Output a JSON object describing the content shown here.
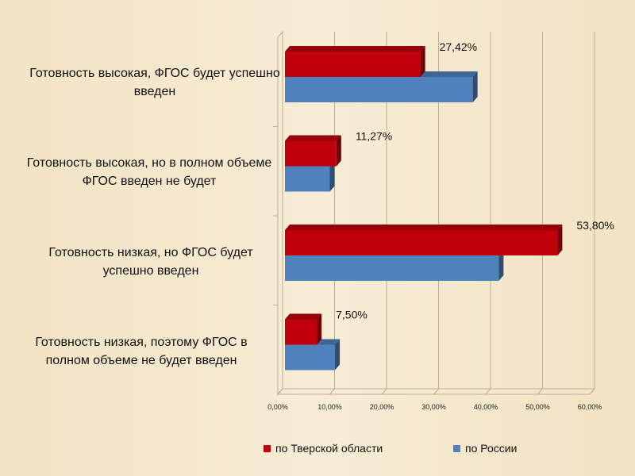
{
  "chart_data": {
    "type": "bar",
    "orientation": "horizontal",
    "categories": [
      "Готовность высокая, ФГОС будет успешно введен",
      "Готовность высокая, но в полном объеме ФГОС введен не будет",
      "Готовность низкая, но ФГОС будет успешно введен",
      "Готовность низкая, поэтому ФГОС в полном объеме не будет введен"
    ],
    "series": [
      {
        "name": "по Тверской области",
        "values": [
          27.42,
          11.27,
          53.8,
          7.5
        ],
        "labels": [
          "27,42%",
          "11,27%",
          "53,80%",
          "7,50%"
        ],
        "color": "#c0000b"
      },
      {
        "name": "по России",
        "values": [
          37.5,
          10.0,
          42.5,
          11.0
        ],
        "color": "#4f81bd"
      }
    ],
    "xticks": [
      "0,00%",
      "10,00%",
      "20,00%",
      "30,00%",
      "40,00%",
      "50,00%",
      "60,00%"
    ],
    "xlim": [
      0,
      60
    ],
    "grid": true,
    "legend_position": "bottom"
  }
}
